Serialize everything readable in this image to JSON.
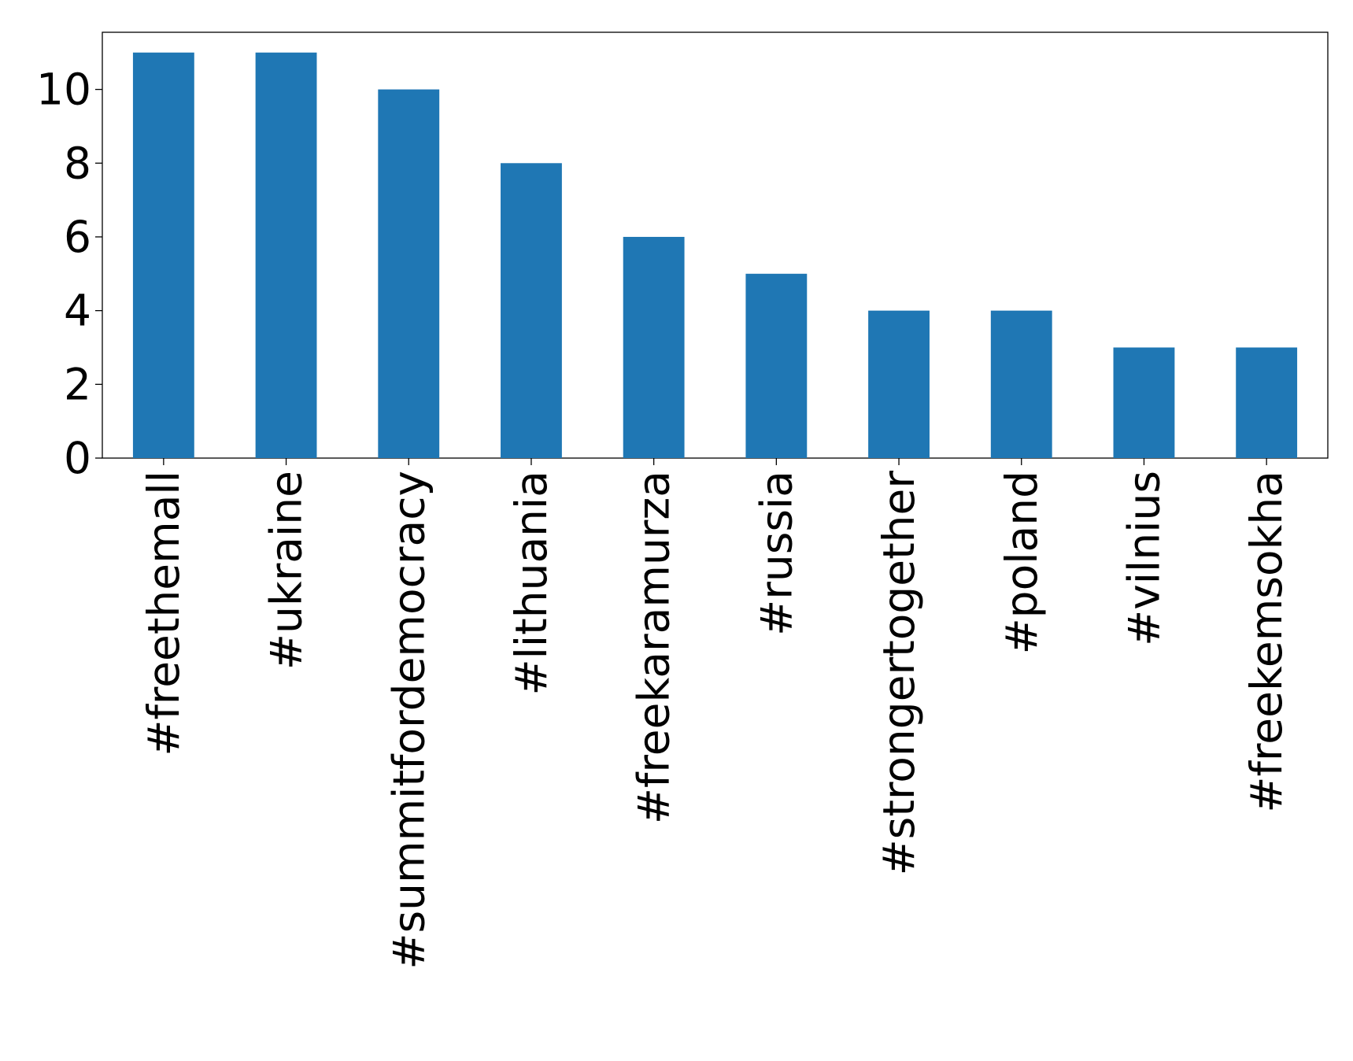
{
  "chart_data": {
    "type": "bar",
    "categories": [
      "#freethemall",
      "#ukraine",
      "#summitfordemocracy",
      "#lithuania",
      "#freekaramurza",
      "#russia",
      "#strongertogether",
      "#poland",
      "#vilnius",
      "#freekemsokha"
    ],
    "values": [
      11,
      11,
      10,
      8,
      6,
      5,
      4,
      4,
      3,
      3
    ],
    "color": "#1f77b4",
    "ylim": [
      0,
      11.55
    ],
    "yticks": [
      0,
      2,
      4,
      6,
      8,
      10
    ],
    "grid": false
  }
}
